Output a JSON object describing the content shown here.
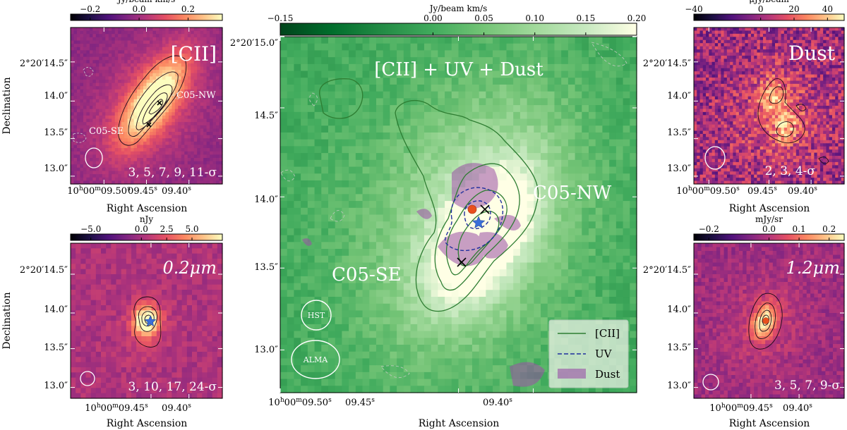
{
  "chart_data": [
    {
      "id": "cii",
      "type": "heatmap",
      "title": "[CII]",
      "colorbar": {
        "label": "Jy/beam km/s",
        "cmap": "magma",
        "range": [
          -0.28,
          0.34
        ],
        "ticks": [
          -0.2,
          0.0,
          0.2
        ],
        "tick_labels": [
          "−0.2",
          "0.0",
          "0.2"
        ]
      },
      "xlabel": "Right Ascension",
      "ylabel": "Declination",
      "xticks": [
        "10h00m09.50s",
        "09.45s",
        "09.40s"
      ],
      "yticks": [
        "2°20′14.5″",
        "14.0″",
        "13.5″",
        "13.0″"
      ],
      "labels": [
        "C05-NW",
        "C05-SE"
      ],
      "contour_levels": "3, 5, 7, 9, 11-σ",
      "markers": [
        {
          "type": "x",
          "label": "C05-NW"
        },
        {
          "type": "x",
          "label": "C05-SE"
        }
      ]
    },
    {
      "id": "uv",
      "type": "heatmap",
      "title": "0.2μm",
      "colorbar": {
        "label": "nJy",
        "cmap": "magma",
        "range": [
          -7.0,
          8.0
        ],
        "ticks": [
          -5.0,
          0.0,
          2.5,
          5.0
        ],
        "tick_labels": [
          "−5.0",
          "0.0",
          "2.5",
          "5.0"
        ]
      },
      "xlabel": "Right Ascension",
      "ylabel": "Declination",
      "xticks": [
        "10h00m09.45s",
        "09.40s"
      ],
      "yticks": [
        "2°20′14.5″",
        "14.0″",
        "13.5″",
        "13.0″"
      ],
      "contour_levels": "3, 10, 17, 24-σ",
      "markers": [
        {
          "type": "star"
        }
      ]
    },
    {
      "id": "composite",
      "type": "heatmap",
      "title": "[CII] + UV + Dust",
      "colorbar": {
        "label": "Jy/beam km/s",
        "cmap": "greens",
        "range": [
          -0.15,
          0.2
        ],
        "ticks": [
          -0.15,
          0.0,
          0.05,
          0.1,
          0.15,
          0.2
        ],
        "tick_labels": [
          "−0.15",
          "0.00",
          "0.05",
          "0.10",
          "0.15",
          "0.20"
        ]
      },
      "xlabel": "Right Ascension",
      "xticks": [
        "10h00m09.50s",
        "09.45s",
        "09.40s"
      ],
      "yticks": [
        "2°20′15.0″",
        "14.5″",
        "14.0″",
        "13.5″",
        "13.0″"
      ],
      "labels": [
        "C05-NW",
        "C05-SE"
      ],
      "beams": [
        "HST",
        "ALMA"
      ],
      "legend": {
        "placement": "bottom-right",
        "entries": [
          "[CII]",
          "UV",
          "Dust"
        ]
      },
      "markers": [
        {
          "type": "x",
          "label": "C05-NW"
        },
        {
          "type": "x",
          "label": "C05-SE"
        },
        {
          "type": "star"
        },
        {
          "type": "circle"
        }
      ]
    },
    {
      "id": "dust",
      "type": "heatmap",
      "title": "Dust",
      "colorbar": {
        "label": "μJy/beam",
        "cmap": "magma",
        "range": [
          -40,
          50
        ],
        "ticks": [
          -40,
          0,
          20,
          40
        ],
        "tick_labels": [
          "−40",
          "0",
          "20",
          "40"
        ]
      },
      "xlabel": "Right Ascension",
      "ylabel": "Declination",
      "xticks": [
        "10h00m09.50s",
        "09.45s",
        "09.40s"
      ],
      "yticks": [
        "2°20′14.5″",
        "14.0″",
        "13.5″",
        "13.0″"
      ],
      "contour_levels": "2, 3, 4-σ"
    },
    {
      "id": "ir",
      "type": "heatmap",
      "title": "1.2μm",
      "colorbar": {
        "label": "mJy/sr",
        "cmap": "magma",
        "range": [
          -0.25,
          0.25
        ],
        "ticks": [
          -0.2,
          0.0,
          0.1,
          0.2
        ],
        "tick_labels": [
          "−0.2",
          "0.0",
          "0.1",
          "0.2"
        ]
      },
      "xlabel": "Right Ascension",
      "ylabel": "Declination",
      "xticks": [
        "10h00m09.45s",
        "09.40s"
      ],
      "yticks": [
        "2°20′14.5″",
        "14.0″",
        "13.5″",
        "13.0″"
      ],
      "contour_levels": "3, 5, 7, 9-σ",
      "markers": [
        {
          "type": "circle"
        }
      ]
    }
  ]
}
